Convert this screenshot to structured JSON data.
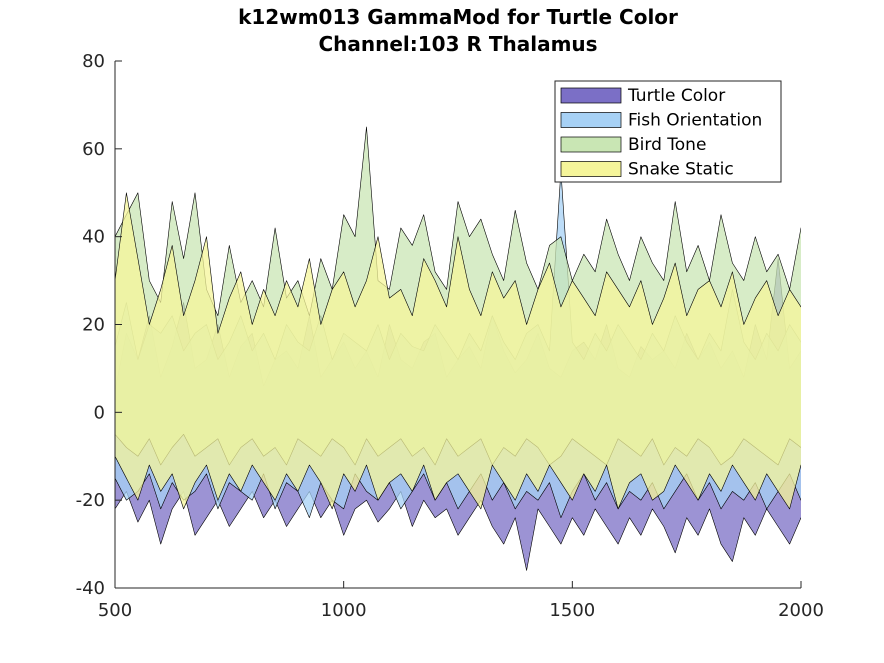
{
  "chart_data": {
    "type": "area",
    "title": "k12wm013 GammaMod for Turtle Color",
    "subtitle": "Channel:103 R Thalamus",
    "xlim": [
      500,
      2000
    ],
    "ylim": [
      -40,
      80
    ],
    "x_ticks": [
      500,
      1000,
      1500,
      2000
    ],
    "y_ticks": [
      -40,
      -20,
      0,
      20,
      40,
      60,
      80
    ],
    "grid": false,
    "legend_position": "top-right",
    "x_start": 500,
    "x_step": 25,
    "series": [
      {
        "name": "Turtle Color",
        "color": "#7b6fc6",
        "upper": [
          5,
          18,
          12,
          22,
          8,
          15,
          25,
          10,
          12,
          20,
          8,
          15,
          18,
          6,
          12,
          14,
          10,
          22,
          8,
          12,
          16,
          10,
          14,
          8,
          20,
          12,
          10,
          16,
          18,
          8,
          12,
          15,
          10,
          22,
          14,
          9,
          12,
          18,
          10,
          8,
          14,
          16,
          12,
          20,
          10,
          8,
          15,
          12,
          14,
          10,
          18,
          12,
          16,
          10,
          14,
          8,
          20,
          12,
          35,
          10,
          14,
          12
        ],
        "lower": [
          -22,
          -18,
          -25,
          -20,
          -30,
          -22,
          -18,
          -28,
          -24,
          -20,
          -26,
          -22,
          -18,
          -24,
          -20,
          -26,
          -22,
          -18,
          -24,
          -20,
          -28,
          -22,
          -20,
          -25,
          -22,
          -18,
          -26,
          -20,
          -24,
          -22,
          -28,
          -24,
          -20,
          -26,
          -30,
          -24,
          -36,
          -22,
          -26,
          -30,
          -24,
          -28,
          -22,
          -26,
          -30,
          -24,
          -28,
          -22,
          -26,
          -32,
          -24,
          -28,
          -22,
          -30,
          -34,
          -24,
          -28,
          -22,
          -26,
          -30,
          -24,
          -35
        ]
      },
      {
        "name": "Fish Orientation",
        "color": "#a7d1f5",
        "upper": [
          15,
          25,
          12,
          20,
          18,
          22,
          14,
          18,
          20,
          12,
          16,
          22,
          14,
          18,
          12,
          20,
          16,
          14,
          22,
          12,
          18,
          16,
          14,
          20,
          12,
          18,
          15,
          14,
          20,
          16,
          12,
          18,
          14,
          22,
          16,
          12,
          18,
          20,
          14,
          55,
          16,
          12,
          18,
          14,
          20,
          16,
          12,
          18,
          14,
          22,
          16,
          12,
          18,
          14,
          28,
          16,
          12,
          18,
          14,
          20,
          16,
          12
        ],
        "lower": [
          -15,
          -20,
          -18,
          -14,
          -22,
          -16,
          -20,
          -18,
          -14,
          -22,
          -16,
          -18,
          -20,
          -14,
          -22,
          -16,
          -18,
          -24,
          -16,
          -20,
          -22,
          -14,
          -18,
          -20,
          -16,
          -22,
          -18,
          -14,
          -20,
          -16,
          -22,
          -18,
          -14,
          -20,
          -16,
          -22,
          -18,
          -20,
          -16,
          -24,
          -18,
          -14,
          -20,
          -16,
          -22,
          -18,
          -20,
          -16,
          -22,
          -18,
          -14,
          -20,
          -16,
          -22,
          -18,
          -20,
          -16,
          -22,
          -18,
          -14,
          -20,
          -16
        ]
      },
      {
        "name": "Bird Tone",
        "color": "#c9e6b4",
        "upper": [
          40,
          45,
          50,
          30,
          25,
          48,
          35,
          50,
          28,
          22,
          38,
          25,
          30,
          24,
          42,
          26,
          30,
          22,
          35,
          28,
          45,
          40,
          65,
          30,
          28,
          42,
          38,
          45,
          32,
          28,
          48,
          40,
          44,
          36,
          30,
          46,
          34,
          28,
          38,
          40,
          30,
          36,
          32,
          44,
          36,
          30,
          40,
          34,
          30,
          48,
          32,
          38,
          30,
          45,
          34,
          30,
          40,
          32,
          36,
          28,
          42,
          44
        ],
        "lower": [
          -5,
          -8,
          -10,
          -6,
          -12,
          -8,
          -5,
          -10,
          -8,
          -6,
          -12,
          -8,
          -6,
          -10,
          -8,
          -12,
          -6,
          -8,
          -10,
          -6,
          -8,
          -12,
          -6,
          -10,
          -8,
          -6,
          -10,
          -8,
          -12,
          -6,
          -10,
          -8,
          -6,
          -12,
          -8,
          -10,
          -6,
          -8,
          -12,
          -10,
          -6,
          -8,
          -10,
          -12,
          -6,
          -8,
          -10,
          -6,
          -12,
          -8,
          -10,
          -6,
          -8,
          -12,
          -10,
          -6,
          -8,
          -10,
          -12,
          -6,
          -8,
          -10
        ]
      },
      {
        "name": "Snake Static",
        "color": "#f5f59a",
        "upper": [
          30,
          50,
          35,
          20,
          28,
          38,
          22,
          30,
          40,
          18,
          26,
          32,
          20,
          28,
          22,
          30,
          24,
          35,
          20,
          28,
          32,
          24,
          30,
          40,
          26,
          28,
          22,
          35,
          30,
          24,
          40,
          28,
          22,
          32,
          26,
          30,
          20,
          28,
          34,
          24,
          30,
          26,
          22,
          32,
          28,
          24,
          30,
          20,
          26,
          34,
          22,
          28,
          30,
          24,
          32,
          20,
          26,
          30,
          22,
          28,
          24,
          32
        ],
        "lower": [
          -10,
          -15,
          -20,
          -12,
          -18,
          -14,
          -22,
          -16,
          -12,
          -20,
          -14,
          -18,
          -12,
          -16,
          -20,
          -14,
          -18,
          -12,
          -16,
          -22,
          -14,
          -18,
          -12,
          -20,
          -16,
          -14,
          -18,
          -12,
          -20,
          -16,
          -14,
          -18,
          -22,
          -12,
          -16,
          -20,
          -14,
          -18,
          -12,
          -16,
          -20,
          -14,
          -18,
          -12,
          -22,
          -16,
          -14,
          -20,
          -18,
          -12,
          -16,
          -20,
          -14,
          -18,
          -12,
          -16,
          -20,
          -14,
          -18,
          -22,
          -12,
          -16
        ]
      }
    ]
  }
}
